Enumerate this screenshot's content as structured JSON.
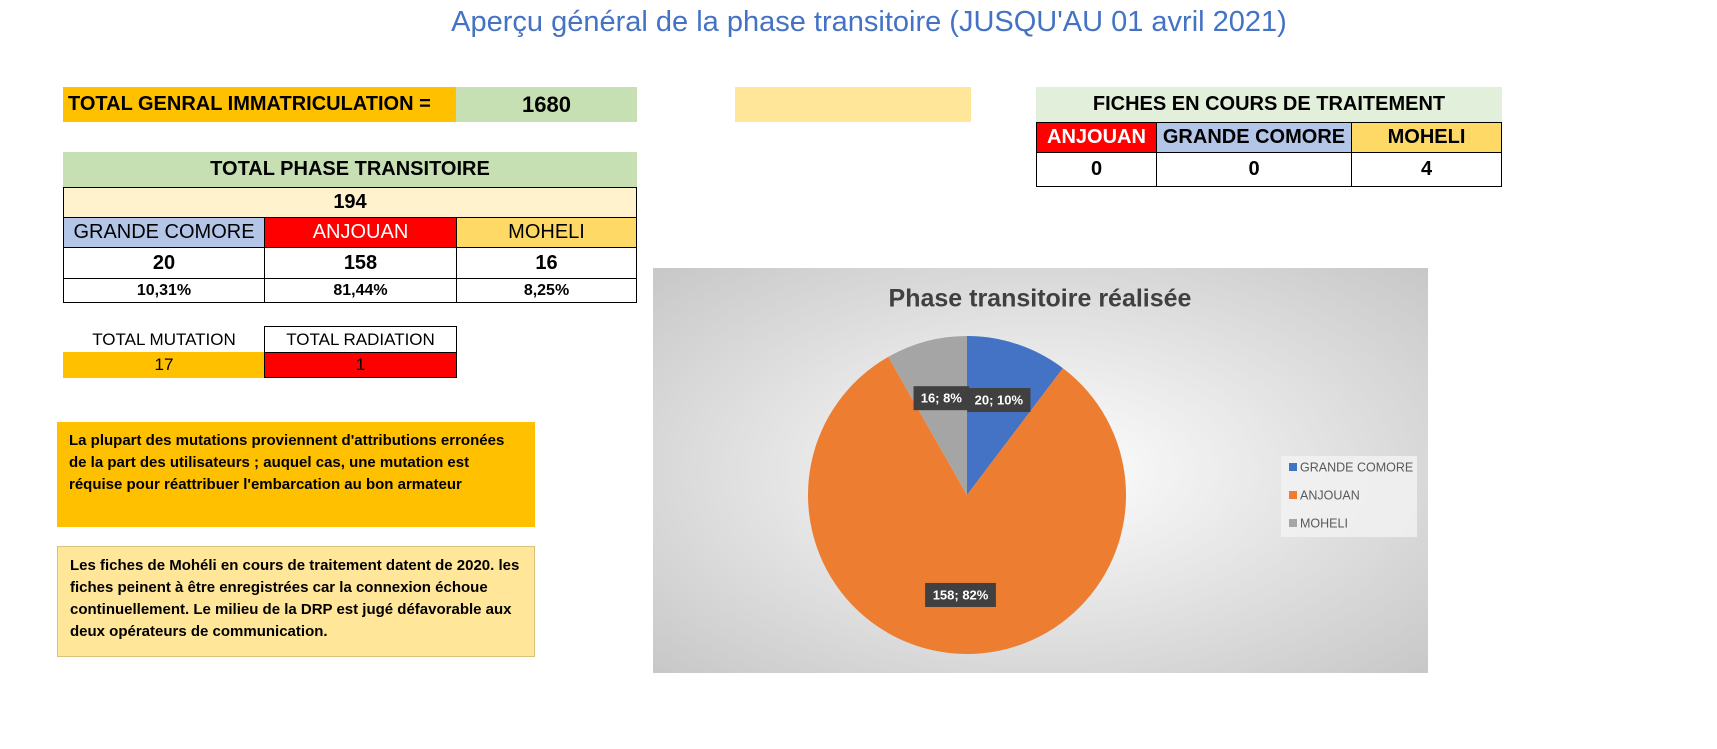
{
  "title": "Aperçu général de la phase transitoire (JUSQU'AU 01 avril 2021)",
  "total_general": {
    "label": "TOTAL GENRAL IMMATRICULATION =",
    "value": 1680
  },
  "fiches": {
    "title": "FICHES EN COURS DE TRAITEMENT",
    "headers": [
      "ANJOUAN",
      "GRANDE COMORE",
      "MOHELI"
    ],
    "values": [
      0,
      0,
      4
    ]
  },
  "phase": {
    "title": "TOTAL PHASE TRANSITOIRE",
    "total": 194,
    "headers": [
      "GRANDE COMORE",
      "ANJOUAN",
      "MOHELI"
    ],
    "counts": [
      20,
      158,
      16
    ],
    "percents": [
      "10,31%",
      "81,44%",
      "8,25%"
    ]
  },
  "mutation_radiation": {
    "headers": [
      "TOTAL MUTATION",
      "TOTAL RADIATION"
    ],
    "values": [
      17,
      1
    ]
  },
  "notes": [
    "La plupart des mutations proviennent d'attributions erronées de la part des utilisateurs ; auquel cas, une mutation est réquise pour réattribuer l'embarcation au bon armateur",
    "Les fiches de Mohéli en cours de traitement datent de 2020. les fiches peinent à être enregistrées car la connexion échoue continuellement. Le milieu de la DRP est jugé défavorable aux deux opérateurs de communication."
  ],
  "chart_data": {
    "type": "pie",
    "title": "Phase transitoire réalisée",
    "categories": [
      "GRANDE COMORE",
      "ANJOUAN",
      "MOHELI"
    ],
    "values": [
      20,
      158,
      16
    ],
    "value_labels": [
      "20; 10%",
      "158; 82%",
      "16; 8%"
    ],
    "colors": [
      "#4472c4",
      "#ed7d31",
      "#a5a5a5"
    ],
    "legend": "right"
  }
}
